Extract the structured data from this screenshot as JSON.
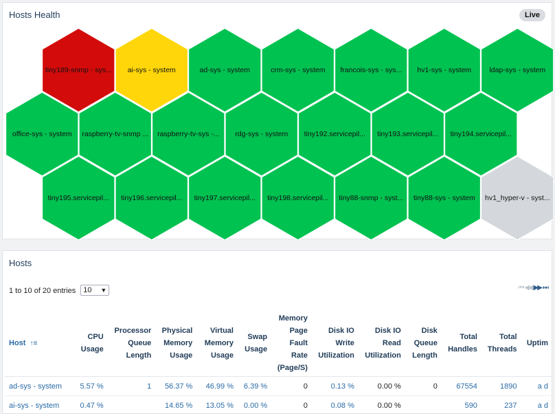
{
  "health": {
    "title": "Hosts Health",
    "live_label": "Live",
    "colors": {
      "red": "#d30b0b",
      "yellow": "#ffd60a",
      "green": "#00c251",
      "gray": "#d4d8dc"
    },
    "rows": [
      [
        {
          "label": "tiny189-snmp - sys...",
          "status": "red"
        },
        {
          "label": "ai-sys - system",
          "status": "yellow"
        },
        {
          "label": "ad-sys - system",
          "status": "green"
        },
        {
          "label": "crm-sys - system",
          "status": "green"
        },
        {
          "label": "francois-sys - sys...",
          "status": "green"
        },
        {
          "label": "hv1-sys - system",
          "status": "green"
        },
        {
          "label": "ldap-sys - system",
          "status": "green"
        }
      ],
      [
        {
          "label": "office-sys - system",
          "status": "green"
        },
        {
          "label": "raspberry-tv-snmp ...",
          "status": "green"
        },
        {
          "label": "raspberry-tv-sys -...",
          "status": "green"
        },
        {
          "label": "rdg-sys - system",
          "status": "green"
        },
        {
          "label": "tiny192.servicepil...",
          "status": "green"
        },
        {
          "label": "tiny193.servicepil...",
          "status": "green"
        },
        {
          "label": "tiny194.servicepil...",
          "status": "green"
        }
      ],
      [
        {
          "label": "tiny195.servicepil...",
          "status": "green"
        },
        {
          "label": "tiny196.servicepil...",
          "status": "green"
        },
        {
          "label": "tiny197.servicepil...",
          "status": "green"
        },
        {
          "label": "tiny198.servicepil...",
          "status": "green"
        },
        {
          "label": "tiny88-snmp - syst...",
          "status": "green"
        },
        {
          "label": "tiny88-sys - system",
          "status": "green"
        },
        {
          "label": "hv1_hyper-v - syst...",
          "status": "gray"
        }
      ]
    ]
  },
  "hosts": {
    "title": "Hosts",
    "entries_text": "1 to 10 of 20 entries",
    "page_size": "10",
    "pager": {
      "first": "⏮",
      "prev": "◀◀",
      "next": "▶▶",
      "last": "⏭"
    },
    "columns": [
      {
        "lines": [
          "Host"
        ]
      },
      {
        "lines": [
          "CPU",
          "Usage"
        ]
      },
      {
        "lines": [
          "Processor",
          "Queue",
          "Length"
        ]
      },
      {
        "lines": [
          "Physical",
          "Memory",
          "Usage"
        ]
      },
      {
        "lines": [
          "Virtual",
          "Memory",
          "Usage"
        ]
      },
      {
        "lines": [
          "Swap",
          "Usage"
        ]
      },
      {
        "lines": [
          "Memory",
          "Page",
          "Fault",
          "Rate",
          "(Page/S)"
        ]
      },
      {
        "lines": [
          "Disk IO",
          "Write",
          "Utilization"
        ]
      },
      {
        "lines": [
          "Disk IO",
          "Read",
          "Utilization"
        ]
      },
      {
        "lines": [
          "Disk",
          "Queue",
          "Length"
        ]
      },
      {
        "lines": [
          "Total",
          "Handles"
        ]
      },
      {
        "lines": [
          "Total",
          "Threads"
        ]
      },
      {
        "lines": [
          "Uptim"
        ]
      }
    ],
    "rows": [
      [
        "ad-sys - system",
        "5.57 %",
        "1",
        "56.37 %",
        "46.99 %",
        "6.39 %",
        "0",
        "0.13 %",
        "0.00 %",
        "0",
        "67554",
        "1890",
        "a d"
      ],
      [
        "ai-sys - system",
        "0.47 %",
        "",
        "14.65 %",
        "13.05 %",
        "0.00 %",
        "0",
        "0.08 %",
        "0.00 %",
        "",
        "590",
        "237",
        "a d"
      ]
    ]
  }
}
